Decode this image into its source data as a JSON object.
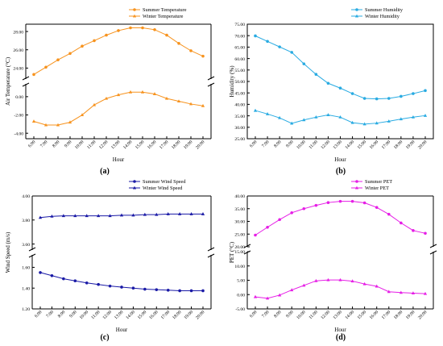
{
  "chart_data": [
    {
      "type": "line",
      "panel_label": "(a)",
      "xlabel": "Hour",
      "ylabel": "Air Temperature (°C)",
      "categories": [
        "6:00",
        "7:00",
        "8:00",
        "9:00",
        "10:00",
        "11:00",
        "12:00",
        "13:00",
        "14:00",
        "15:00",
        "16:00",
        "17:00",
        "18:00",
        "19:00",
        "20:00"
      ],
      "axis_break": true,
      "upper_ylim": [
        22.8,
        28.8
      ],
      "upper_ticks": [
        "22.00",
        "24.00",
        "26.00",
        "28.00"
      ],
      "upper_tick_values": [
        22,
        24,
        26,
        28
      ],
      "lower_ylim": [
        -4.6,
        1.4
      ],
      "lower_ticks": [
        "-4.00",
        "-2.00",
        "0.00"
      ],
      "lower_tick_values": [
        -4,
        -2,
        0
      ],
      "legend_position": "top-right",
      "series": [
        {
          "name": "Summer Temperature",
          "marker": "circle",
          "color": "#f7931e",
          "values": [
            23.3,
            24.1,
            24.9,
            25.6,
            26.4,
            27.0,
            27.6,
            28.1,
            28.4,
            28.4,
            28.2,
            27.6,
            26.7,
            25.9,
            25.3
          ]
        },
        {
          "name": "Winter Temperature",
          "marker": "triangle",
          "color": "#f7931e",
          "values": [
            -2.7,
            -3.1,
            -3.1,
            -2.8,
            -2.0,
            -0.9,
            -0.2,
            0.2,
            0.5,
            0.5,
            0.3,
            -0.2,
            -0.5,
            -0.8,
            -1.0
          ]
        }
      ]
    },
    {
      "type": "line",
      "panel_label": "(b)",
      "xlabel": "Hour",
      "ylabel": "Humidity (%)",
      "categories": [
        "6:00",
        "7:00",
        "8:00",
        "9:00",
        "10:00",
        "11:00",
        "12:00",
        "13:00",
        "14:00",
        "15:00",
        "16:00",
        "17:00",
        "18:00",
        "19:00",
        "20:00"
      ],
      "axis_break": false,
      "ylim": [
        25,
        75
      ],
      "ticks": [
        "25.00",
        "30.00",
        "35.00",
        "40.00",
        "45.00",
        "50.00",
        "55.00",
        "60.00",
        "65.00",
        "70.00",
        "75.00"
      ],
      "tick_values": [
        25,
        30,
        35,
        40,
        45,
        50,
        55,
        60,
        65,
        70,
        75
      ],
      "legend_position": "top-right",
      "series": [
        {
          "name": "Summer Humidity",
          "marker": "circle",
          "color": "#29abe2",
          "values": [
            69.9,
            67.5,
            65.1,
            62.7,
            57.7,
            53.1,
            49.2,
            47.1,
            44.7,
            42.6,
            42.4,
            42.6,
            43.5,
            44.7,
            46.0
          ]
        },
        {
          "name": "Winter Humidity",
          "marker": "triangle",
          "color": "#29abe2",
          "values": [
            37.3,
            35.8,
            34.1,
            31.7,
            33.2,
            34.4,
            35.4,
            34.4,
            32.0,
            31.4,
            31.8,
            32.6,
            33.6,
            34.4,
            35.1
          ]
        }
      ]
    },
    {
      "type": "line",
      "panel_label": "(c)",
      "xlabel": "Hour",
      "ylabel": "Wind Speed (m/s)",
      "categories": [
        "6:00",
        "7:00",
        "8:00",
        "9:00",
        "10:00",
        "11:00",
        "12:00",
        "13:00",
        "14:00",
        "15:00",
        "16:00",
        "17:00",
        "18:00",
        "19:00",
        "20:00"
      ],
      "axis_break": true,
      "upper_ylim": [
        3.55,
        4.0
      ],
      "upper_ticks": [
        "3.60",
        "3.80",
        "4.00"
      ],
      "upper_tick_values": [
        3.6,
        3.8,
        4.0
      ],
      "lower_ylim": [
        1.2,
        1.72
      ],
      "lower_ticks": [
        "1.20",
        "1.40",
        "1.60"
      ],
      "lower_tick_values": [
        1.2,
        1.4,
        1.6
      ],
      "legend_position": "top-right",
      "series": [
        {
          "name": "Summer Wind Speed",
          "marker": "circle",
          "color": "#1a1aa6",
          "values": [
            1.55,
            1.52,
            1.49,
            1.47,
            1.45,
            1.435,
            1.42,
            1.41,
            1.4,
            1.39,
            1.385,
            1.38,
            1.375,
            1.375,
            1.375
          ]
        },
        {
          "name": "Winter Wind Speed",
          "marker": "triangle",
          "color": "#1a1aa6",
          "values": [
            3.82,
            3.83,
            3.835,
            3.835,
            3.835,
            3.835,
            3.835,
            3.84,
            3.84,
            3.845,
            3.845,
            3.85,
            3.85,
            3.85,
            3.85
          ]
        }
      ]
    },
    {
      "type": "line",
      "panel_label": "(d)",
      "xlabel": "Hour",
      "ylabel": "PET (°C)",
      "categories": [
        "6:00",
        "7:00",
        "8:00",
        "9:00",
        "10:00",
        "11:00",
        "12:00",
        "13:00",
        "14:00",
        "15:00",
        "16:00",
        "17:00",
        "18:00",
        "19:00",
        "20:00"
      ],
      "axis_break": true,
      "upper_ylim": [
        20,
        40
      ],
      "upper_ticks": [
        "20.00",
        "25.00",
        "30.00",
        "35.00",
        "40.00"
      ],
      "upper_tick_values": [
        20,
        25,
        30,
        35,
        40
      ],
      "lower_ylim": [
        -5,
        15
      ],
      "lower_ticks": [
        "-5.00",
        "0.00",
        "5.00",
        "10.00",
        "15.00"
      ],
      "lower_tick_values": [
        -5,
        0,
        5,
        10,
        15
      ],
      "legend_position": "top-right",
      "series": [
        {
          "name": "Summer PET",
          "marker": "circle",
          "color": "#e61ee6",
          "values": [
            24.6,
            27.7,
            30.7,
            33.4,
            35.0,
            36.3,
            37.4,
            37.9,
            37.9,
            37.3,
            35.5,
            32.8,
            29.4,
            26.4,
            25.3
          ]
        },
        {
          "name": "Winter PET",
          "marker": "triangle",
          "color": "#e61ee6",
          "values": [
            -0.8,
            -1.3,
            -0.2,
            1.6,
            3.2,
            4.8,
            5.1,
            5.1,
            4.7,
            3.7,
            2.9,
            1.0,
            0.7,
            0.5,
            0.3
          ]
        }
      ]
    }
  ]
}
